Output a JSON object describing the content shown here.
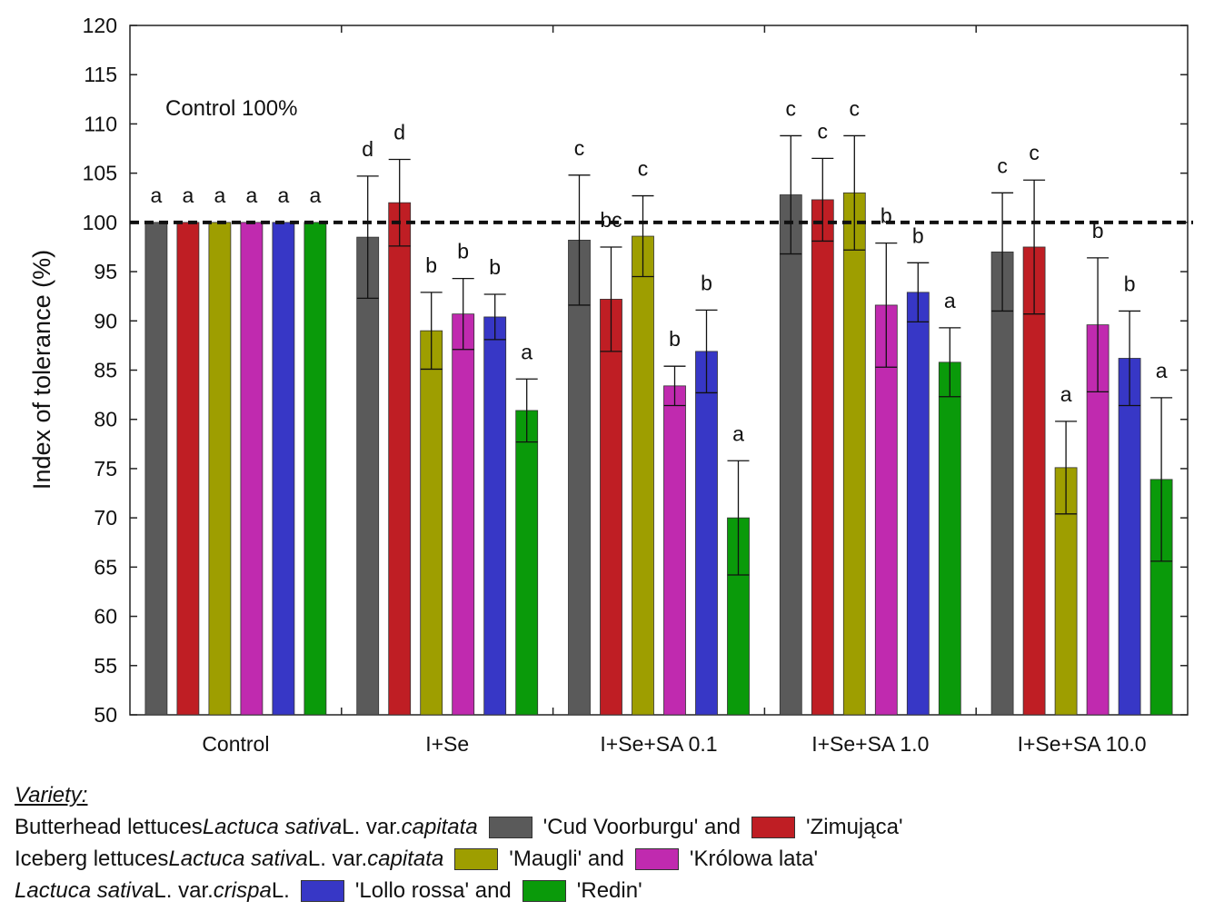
{
  "chart_data": {
    "type": "bar",
    "ylabel": "Index of tolerance (%)",
    "ylim": [
      50,
      120
    ],
    "yticks": [
      50,
      55,
      60,
      65,
      70,
      75,
      80,
      85,
      90,
      95,
      100,
      105,
      110,
      115,
      120
    ],
    "reference_line": 100,
    "annotation": "Control 100%",
    "categories": [
      "Control",
      "I+Se",
      "I+Se+SA 0.1",
      "I+Se+SA 1.0",
      "I+Se+SA 10.0"
    ],
    "series": [
      {
        "name": "'Cud Voorburgu'",
        "color": "#5a5a5a",
        "values": [
          100,
          98.5,
          98.2,
          102.8,
          97.0
        ],
        "errors": [
          0,
          6.2,
          6.6,
          6.0,
          6.0
        ],
        "letters": [
          "a",
          "d",
          "c",
          "c",
          "c"
        ]
      },
      {
        "name": "'Zimująca'",
        "color": "#bf1e24",
        "values": [
          100,
          102.0,
          92.2,
          102.3,
          97.5
        ],
        "errors": [
          0,
          4.4,
          5.3,
          4.2,
          6.8
        ],
        "letters": [
          "a",
          "d",
          "bc",
          "c",
          "c"
        ]
      },
      {
        "name": "'Maugli'",
        "color": "#9e9e00",
        "values": [
          100,
          89.0,
          98.6,
          103.0,
          75.1
        ],
        "errors": [
          0,
          3.9,
          4.1,
          5.8,
          4.7
        ],
        "letters": [
          "a",
          "b",
          "c",
          "c",
          "a"
        ]
      },
      {
        "name": "'Królowa lata'",
        "color": "#c02aaf",
        "values": [
          100,
          90.7,
          83.4,
          91.6,
          89.6
        ],
        "errors": [
          0,
          3.6,
          2.0,
          6.3,
          6.8
        ],
        "letters": [
          "a",
          "b",
          "b",
          "b",
          "b"
        ]
      },
      {
        "name": "'Lollo rossa'",
        "color": "#3737c6",
        "values": [
          100,
          90.4,
          86.9,
          92.9,
          86.2
        ],
        "errors": [
          0,
          2.3,
          4.2,
          3.0,
          4.8
        ],
        "letters": [
          "a",
          "b",
          "b",
          "b",
          "b"
        ]
      },
      {
        "name": "'Redin'",
        "color": "#0a9a0a",
        "values": [
          100,
          80.9,
          70.0,
          85.8,
          73.9
        ],
        "errors": [
          0,
          3.2,
          5.8,
          3.5,
          8.3
        ],
        "letters": [
          "a",
          "a",
          "a",
          "a",
          "a"
        ]
      }
    ]
  },
  "legend": {
    "title": "Variety:",
    "rows": [
      {
        "pre": "Butterhead lettuces ",
        "italic1": "Lactuca sativa",
        "mid": " L. var. ",
        "italic2": "capitata",
        "post": "",
        "item1": "'Cud Voorburgu' and",
        "item2": "'Zimująca'",
        "color1": "#5a5a5a",
        "color2": "#bf1e24"
      },
      {
        "pre": "Iceberg lettuces ",
        "italic1": "Lactuca sativa",
        "mid": " L. var. ",
        "italic2": "capitata",
        "post": "",
        "item1": "'Maugli' and",
        "item2": "'Królowa lata'",
        "color1": "#9e9e00",
        "color2": "#c02aaf"
      },
      {
        "pre": "",
        "italic1": "Lactuca sativa",
        "mid": " L. var. ",
        "italic2": "crispa",
        "post": " L.",
        "item1": "'Lollo rossa' and",
        "item2": "'Redin'",
        "color1": "#3737c6",
        "color2": "#0a9a0a"
      }
    ]
  }
}
